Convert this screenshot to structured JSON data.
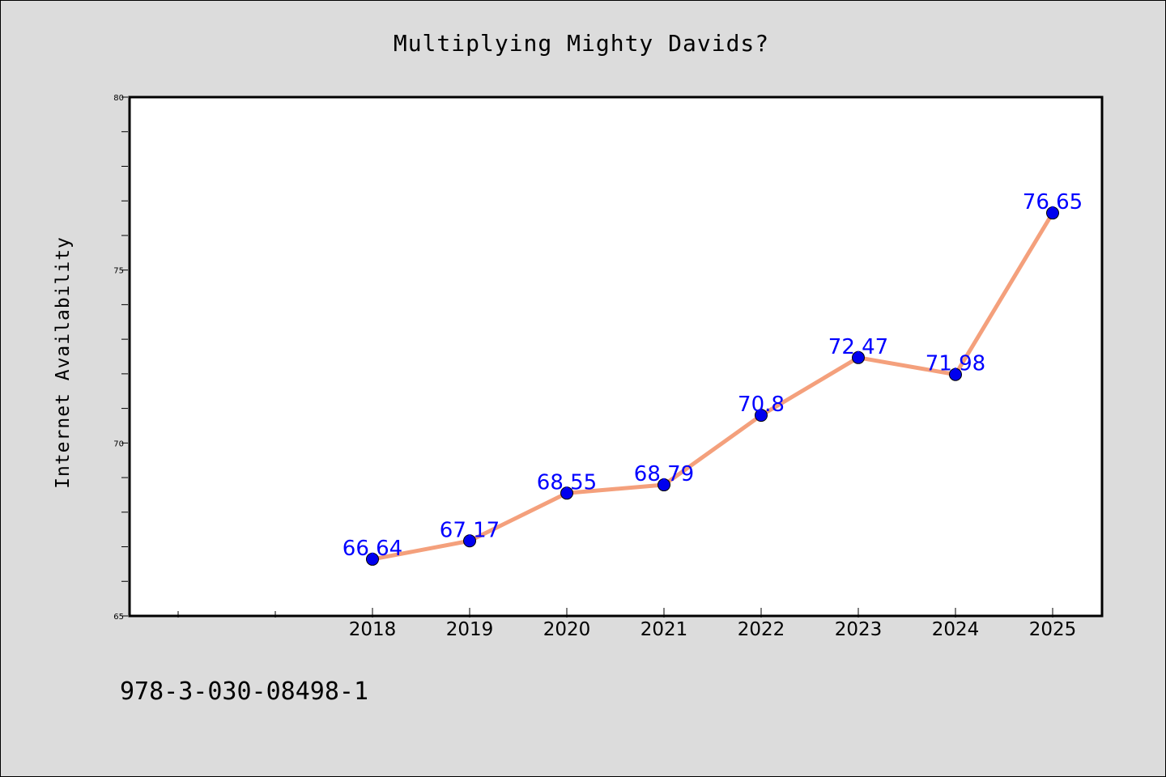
{
  "chart_data": {
    "type": "line",
    "title": "Multiplying Mighty Davids?",
    "xlabel": "",
    "ylabel": "Internet Availability",
    "categories": [
      "2018",
      "2019",
      "2020",
      "2021",
      "2022",
      "2023",
      "2024",
      "2025"
    ],
    "series": [
      {
        "values": [
          66.64,
          67.17,
          68.55,
          68.79,
          70.8,
          72.47,
          71.98,
          76.65
        ],
        "labels": [
          "66.64",
          "67.17",
          "68.55",
          "68.79",
          "70.8",
          "72.47",
          "71.98",
          "76.65"
        ],
        "line_color": "#f4a07c",
        "marker_color": "#0000ee",
        "label_color": "#0000ff"
      }
    ],
    "ylim": [
      65,
      80
    ],
    "yticks": [
      "65",
      "70",
      "75",
      "80"
    ],
    "grid": false,
    "legend": "none"
  },
  "footer": {
    "code": "978-3-030-08498-1"
  }
}
